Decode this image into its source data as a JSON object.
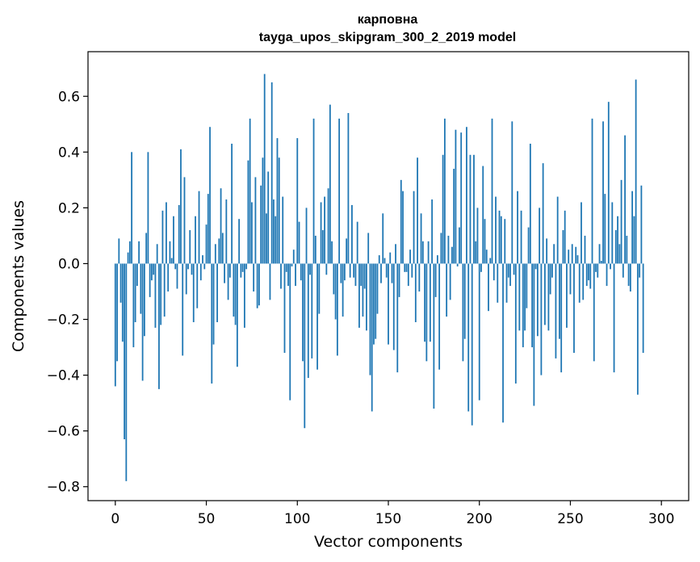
{
  "chart_data": {
    "type": "bar",
    "title": "карповна",
    "subtitle": "tayga_upos_skipgram_300_2_2019 model",
    "xlabel": "Vector components",
    "ylabel": "Components values",
    "xlim": [
      -15,
      315
    ],
    "ylim": [
      -0.85,
      0.76
    ],
    "xticks": [
      0,
      50,
      100,
      150,
      200,
      250,
      300
    ],
    "yticks": [
      -0.8,
      -0.6,
      -0.4,
      -0.2,
      0.0,
      0.2,
      0.4,
      0.6
    ],
    "ytick_labels": [
      "−0.8",
      "−0.6",
      "−0.4",
      "−0.2",
      "0.0",
      "0.2",
      "0.4",
      "0.6"
    ],
    "xtick_labels": [
      "0",
      "50",
      "100",
      "150",
      "200",
      "250",
      "300"
    ],
    "bar_color": "#1f77b4",
    "values": [
      -0.44,
      -0.35,
      0.09,
      -0.14,
      -0.28,
      -0.63,
      -0.78,
      0.04,
      0.08,
      0.4,
      -0.3,
      -0.21,
      -0.08,
      0.08,
      -0.18,
      -0.42,
      -0.26,
      0.11,
      0.4,
      -0.12,
      -0.06,
      -0.04,
      -0.23,
      0.07,
      -0.45,
      -0.22,
      0.19,
      -0.19,
      0.22,
      -0.1,
      0.08,
      0.02,
      0.17,
      -0.02,
      -0.09,
      0.21,
      0.41,
      -0.33,
      0.31,
      -0.11,
      -0.02,
      0.12,
      -0.04,
      -0.21,
      0.17,
      -0.16,
      0.26,
      -0.06,
      0.03,
      -0.02,
      0.14,
      0.25,
      0.49,
      -0.43,
      -0.29,
      0.07,
      -0.21,
      0.09,
      0.27,
      0.11,
      -0.07,
      0.23,
      -0.13,
      -0.05,
      0.43,
      -0.19,
      -0.22,
      -0.37,
      0.16,
      -0.05,
      -0.03,
      -0.23,
      -0.02,
      0.37,
      0.52,
      0.22,
      -0.1,
      0.31,
      -0.16,
      -0.15,
      0.28,
      0.38,
      0.68,
      0.18,
      0.33,
      -0.13,
      0.65,
      0.23,
      0.17,
      0.45,
      0.38,
      -0.09,
      0.24,
      -0.32,
      -0.03,
      -0.08,
      -0.49,
      -0.01,
      0.05,
      -0.08,
      0.45,
      0.15,
      -0.06,
      -0.35,
      -0.59,
      0.2,
      -0.41,
      -0.04,
      -0.34,
      0.52,
      0.1,
      -0.38,
      -0.18,
      0.22,
      0.12,
      0.24,
      -0.04,
      0.27,
      0.57,
      0.08,
      -0.11,
      -0.2,
      -0.33,
      0.52,
      -0.07,
      -0.19,
      -0.06,
      0.09,
      0.54,
      -0.05,
      0.21,
      -0.05,
      -0.08,
      0.15,
      -0.23,
      -0.08,
      -0.19,
      -0.09,
      -0.24,
      0.11,
      -0.4,
      -0.53,
      -0.29,
      -0.27,
      -0.18,
      0.03,
      -0.07,
      0.18,
      0.02,
      -0.05,
      -0.29,
      0.04,
      -0.07,
      -0.31,
      0.07,
      -0.39,
      -0.12,
      0.3,
      0.26,
      -0.03,
      -0.03,
      -0.08,
      0.05,
      -0.05,
      0.26,
      -0.21,
      0.38,
      -0.1,
      0.18,
      0.08,
      -0.28,
      -0.35,
      0.08,
      -0.28,
      0.23,
      -0.52,
      -0.12,
      0.03,
      -0.38,
      0.11,
      0.39,
      0.52,
      -0.19,
      0.1,
      -0.13,
      0.06,
      0.34,
      0.48,
      -0.01,
      0.13,
      0.47,
      -0.35,
      -0.27,
      0.49,
      -0.53,
      0.39,
      -0.58,
      0.39,
      0.08,
      0.2,
      -0.49,
      -0.03,
      0.35,
      0.16,
      0.05,
      -0.17,
      0.02,
      0.52,
      -0.06,
      0.24,
      -0.14,
      0.19,
      0.17,
      -0.57,
      0.16,
      -0.14,
      -0.05,
      -0.08,
      0.51,
      -0.04,
      -0.43,
      0.26,
      -0.24,
      0.19,
      -0.3,
      -0.24,
      -0.16,
      0.13,
      0.43,
      -0.3,
      -0.51,
      -0.02,
      -0.26,
      0.2,
      -0.4,
      0.36,
      -0.22,
      0.09,
      -0.24,
      -0.11,
      -0.05,
      0.07,
      -0.34,
      0.24,
      -0.27,
      -0.39,
      0.12,
      0.19,
      -0.23,
      0.05,
      -0.11,
      0.07,
      -0.32,
      0.06,
      0.03,
      -0.14,
      0.22,
      -0.13,
      0.1,
      -0.08,
      -0.06,
      -0.09,
      0.52,
      -0.35,
      -0.03,
      -0.05,
      0.07,
      0.01,
      0.51,
      0.25,
      -0.08,
      0.58,
      -0.02,
      0.22,
      -0.39,
      0.12,
      0.17,
      0.07,
      0.3,
      -0.05,
      0.46,
      0.1,
      -0.08,
      -0.1,
      0.26,
      0.17,
      0.66,
      -0.47,
      -0.05,
      0.28,
      -0.32
    ]
  }
}
